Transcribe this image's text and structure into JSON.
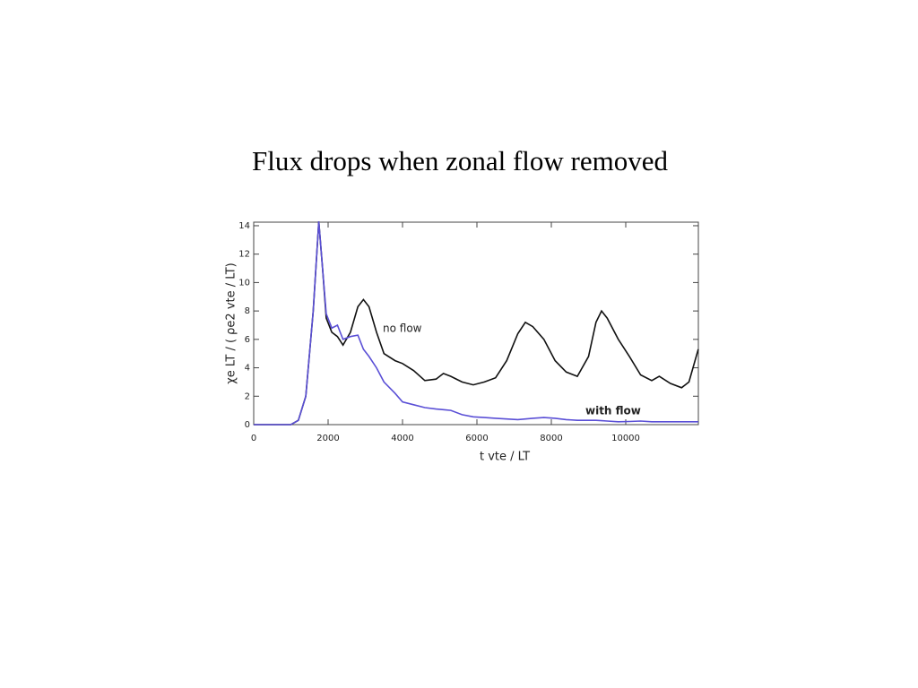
{
  "title": "Flux drops when zonal flow removed",
  "chart_data": {
    "type": "line",
    "x_label": "t  vte / LT",
    "y_label": "χe LT / ( ρe2 vte / LT)",
    "x": [
      0,
      500,
      1000,
      1200,
      1400,
      1600,
      1750,
      1850,
      1950,
      2100,
      2250,
      2400,
      2600,
      2800,
      2950,
      3100,
      3300,
      3500,
      3800,
      4000,
      4300,
      4600,
      4900,
      5100,
      5300,
      5600,
      5900,
      6200,
      6500,
      6800,
      7100,
      7300,
      7500,
      7800,
      8100,
      8400,
      8700,
      9000,
      9200,
      9350,
      9500,
      9800,
      10100,
      10400,
      10700,
      10900,
      11200,
      11500,
      11700,
      11950
    ],
    "series": [
      {
        "name": "no flow",
        "color": "#111111",
        "values": [
          0,
          0,
          0,
          0.3,
          2,
          8,
          14.3,
          11,
          7.5,
          6.5,
          6.2,
          5.6,
          6.5,
          8.3,
          8.8,
          8.3,
          6.5,
          5,
          4.5,
          4.3,
          3.8,
          3.1,
          3.2,
          3.6,
          3.4,
          3,
          2.8,
          3.0,
          3.3,
          4.5,
          6.4,
          7.2,
          6.9,
          6.0,
          4.5,
          3.7,
          3.4,
          4.8,
          7.2,
          8.0,
          7.5,
          6.0,
          4.8,
          3.5,
          3.1,
          3.4,
          2.9,
          2.6,
          3,
          5.3
        ]
      },
      {
        "name": "with flow",
        "color": "#5a4fd6",
        "values": [
          0,
          0,
          0,
          0.3,
          2,
          8,
          14.3,
          11,
          7.8,
          6.8,
          7.0,
          6.0,
          6.2,
          6.3,
          5.3,
          4.8,
          4.0,
          3.0,
          2.2,
          1.6,
          1.4,
          1.2,
          1.1,
          1.05,
          1.0,
          0.7,
          0.55,
          0.5,
          0.45,
          0.4,
          0.35,
          0.4,
          0.45,
          0.5,
          0.45,
          0.35,
          0.3,
          0.3,
          0.3,
          0.28,
          0.25,
          0.2,
          0.22,
          0.25,
          0.2,
          0.2,
          0.2,
          0.2,
          0.2,
          0.2
        ]
      }
    ],
    "xlim": [
      0,
      12000
    ],
    "xticks": [
      0,
      2000,
      4000,
      6000,
      8000,
      10000
    ],
    "ylim": [
      0,
      14.25
    ],
    "yticks": [
      0,
      2,
      4,
      6,
      8,
      10,
      12,
      14
    ],
    "grid": false
  }
}
